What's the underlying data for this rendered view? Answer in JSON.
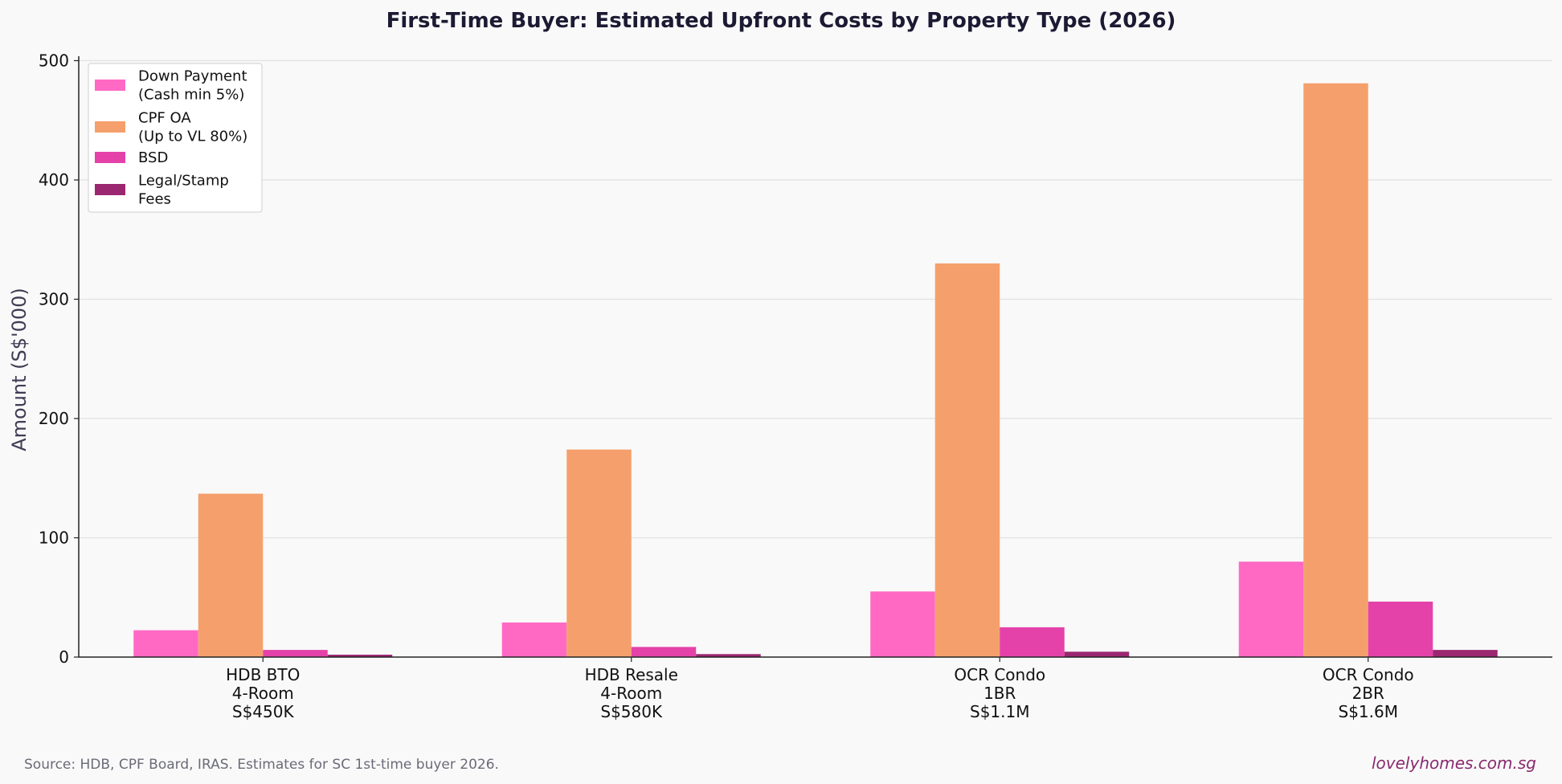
{
  "chart_data": {
    "type": "bar",
    "title": "First-Time Buyer: Estimated Upfront Costs by Property Type (2026)",
    "ylabel": "Amount (S$'000)",
    "xlabel": "",
    "ylim": [
      0,
      500
    ],
    "yticks": [
      0,
      100,
      200,
      300,
      400,
      500
    ],
    "grid": true,
    "legend_position": "top-left",
    "categories": [
      [
        "HDB BTO",
        "4-Room",
        "S$450K"
      ],
      [
        "HDB Resale",
        "4-Room",
        "S$580K"
      ],
      [
        "OCR Condo",
        "1BR",
        "S$1.1M"
      ],
      [
        "OCR Condo",
        "2BR",
        "S$1.6M"
      ]
    ],
    "series": [
      {
        "name": [
          "Down Payment",
          "(Cash min 5%)"
        ],
        "color": "#ff69c4",
        "values": [
          22.5,
          29,
          55,
          80
        ]
      },
      {
        "name": [
          "CPF OA",
          "(Up to VL 80%)"
        ],
        "color": "#f5a06c",
        "values": [
          137,
          174,
          330,
          481
        ]
      },
      {
        "name": [
          "BSD"
        ],
        "color": "#e442a8",
        "values": [
          6,
          8.5,
          25,
          46.5
        ]
      },
      {
        "name": [
          "Legal/Stamp",
          "Fees"
        ],
        "color": "#9b2771",
        "values": [
          2,
          2.5,
          4.5,
          6
        ]
      }
    ]
  },
  "footer": {
    "source": "Source: HDB, CPF Board, IRAS. Estimates for SC 1st-time buyer 2026.",
    "brand": "lovelyhomes.com.sg"
  }
}
